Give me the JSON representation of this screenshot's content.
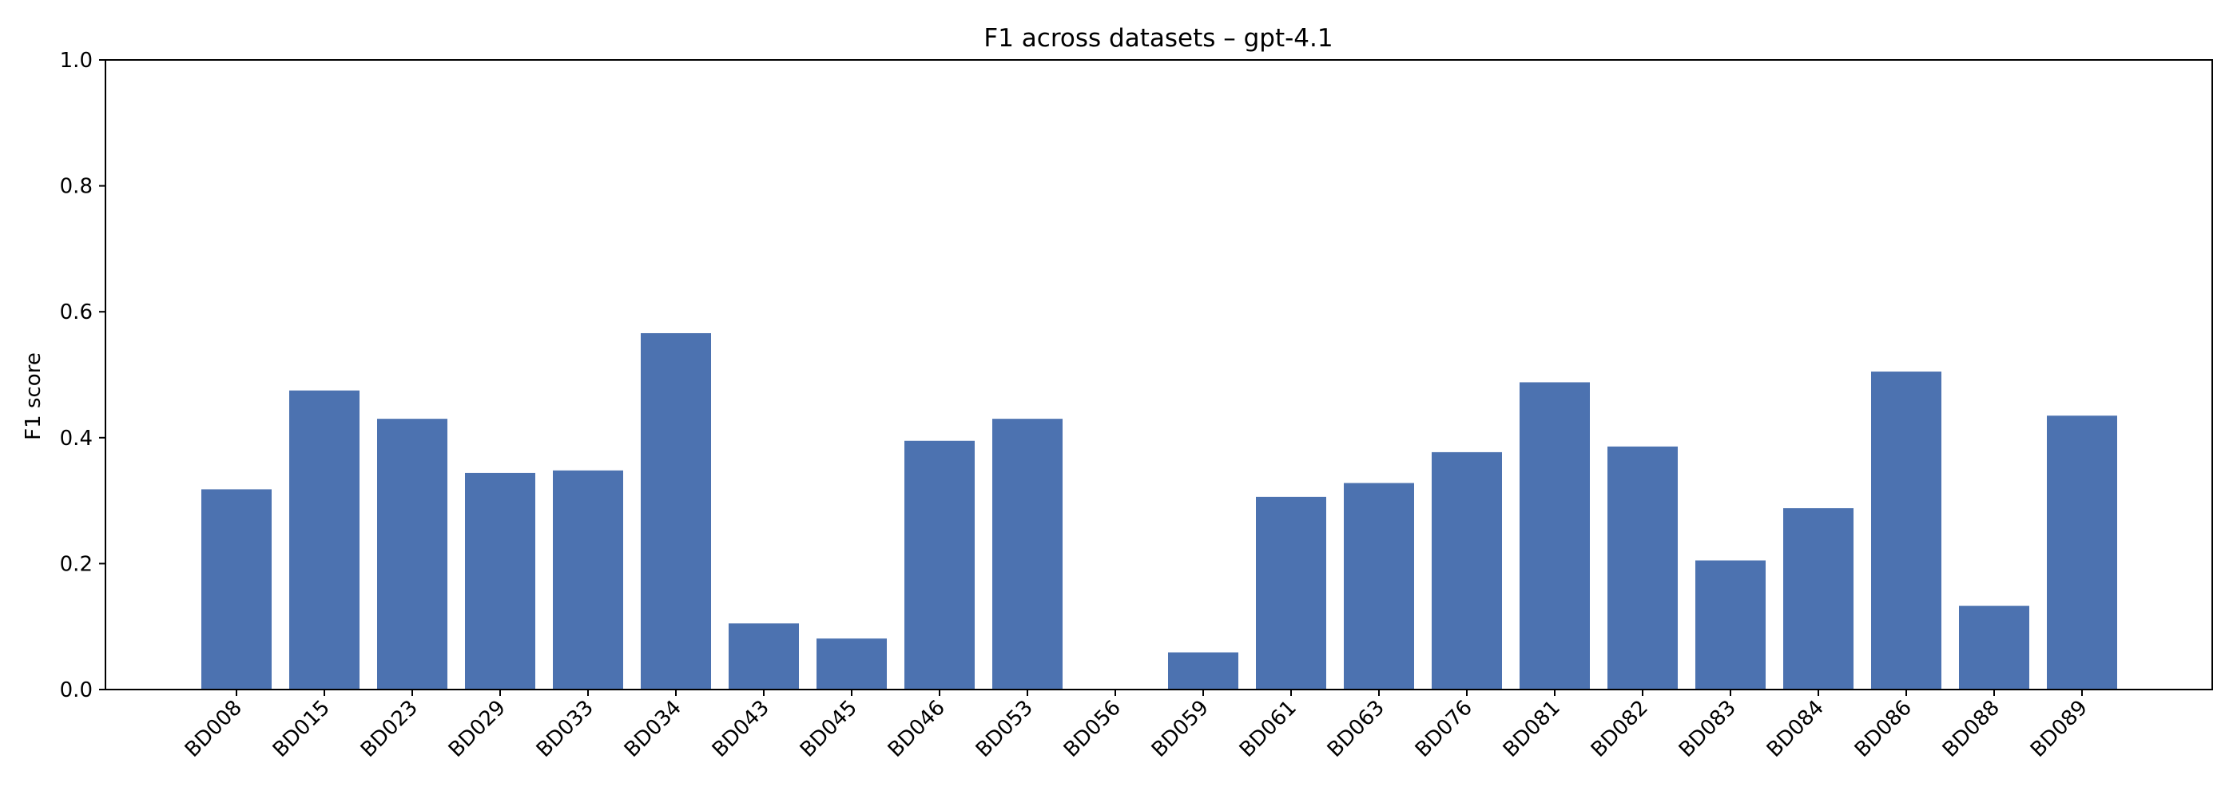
{
  "chart_data": {
    "type": "bar",
    "title": "F1 across datasets – gpt-4.1",
    "xlabel": "",
    "ylabel": "F1 score",
    "ylim": [
      0,
      1.0
    ],
    "yticks": [
      "0.0",
      "0.2",
      "0.4",
      "0.6",
      "0.8",
      "1.0"
    ],
    "grid": false,
    "bar_color": "#4c72b0",
    "categories": [
      "BD008",
      "BD015",
      "BD023",
      "BD029",
      "BD033",
      "BD034",
      "BD043",
      "BD045",
      "BD046",
      "BD053",
      "BD056",
      "BD059",
      "BD061",
      "BD063",
      "BD076",
      "BD081",
      "BD082",
      "BD083",
      "BD084",
      "BD086",
      "BD088",
      "BD089"
    ],
    "values": [
      0.318,
      0.475,
      0.43,
      0.344,
      0.348,
      0.566,
      0.105,
      0.081,
      0.395,
      0.43,
      0.0,
      0.059,
      0.306,
      0.328,
      0.377,
      0.488,
      0.386,
      0.205,
      0.288,
      0.505,
      0.133,
      0.435
    ]
  }
}
